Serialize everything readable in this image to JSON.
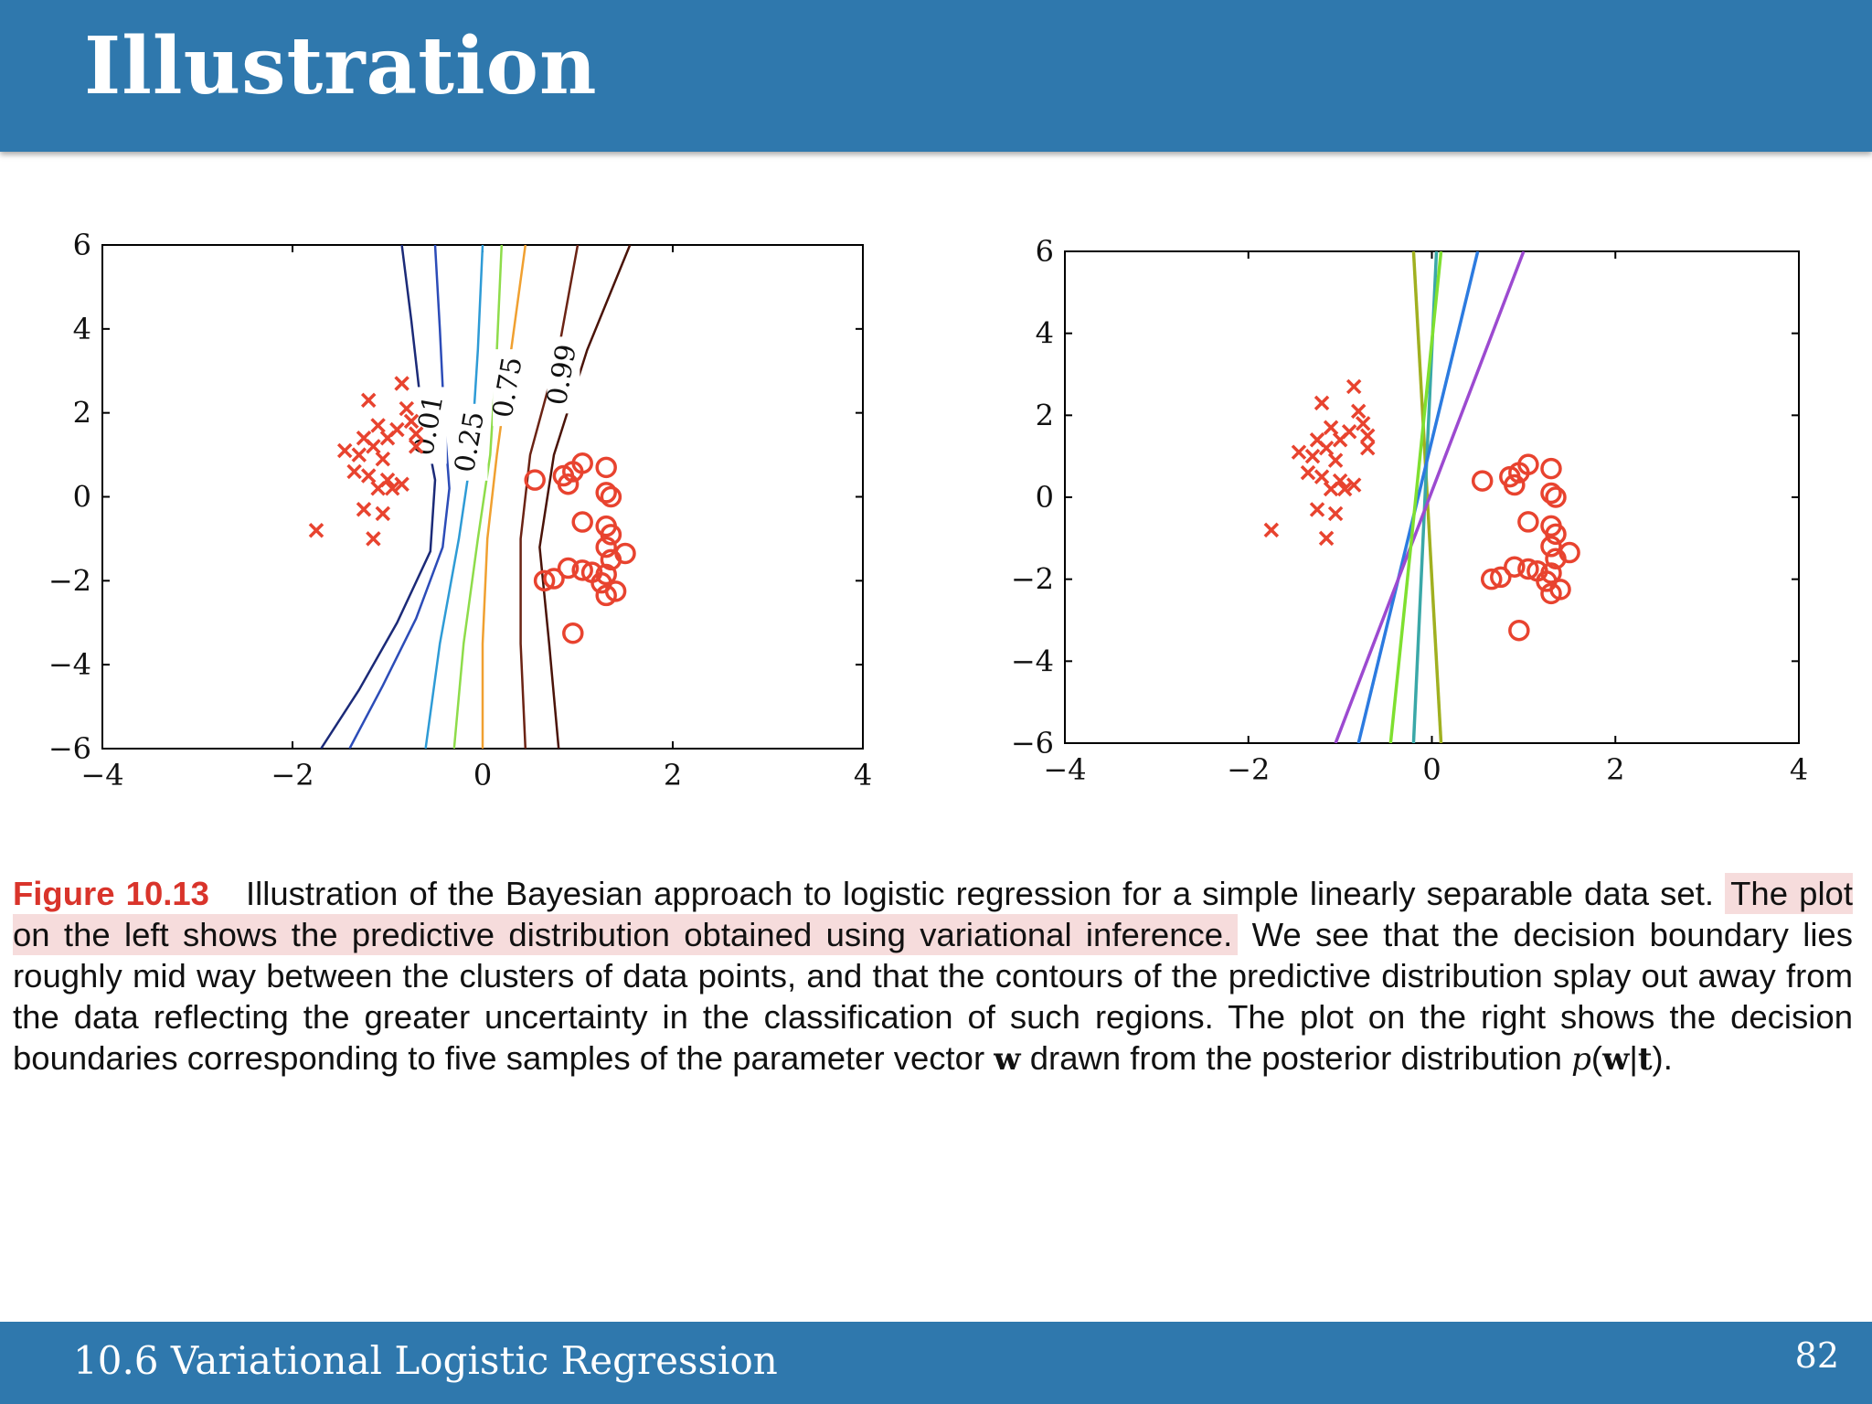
{
  "header": {
    "title": "Illustration"
  },
  "footer": {
    "section_title": "10.6 Variational Logistic Regression",
    "page_number": "82"
  },
  "caption": {
    "figure_label": "Figure 10.13",
    "text_1": "Illustration of the Bayesian approach to logistic regression for a simple linearly separable data set.",
    "highlight": "The plot on the left shows the predictive distribution obtained using variational inference.",
    "text_2": "We see that the decision boundary lies roughly mid way between the clusters of data points, and that the contours of the predictive distribution splay out away from the data reflecting the greater uncertainty in the classification of such regions. The plot on the right shows the decision boundaries corresponding to five samples of the parameter vector",
    "vec_w": "w",
    "text_3": "drawn from the posterior distribution",
    "post_p": "p",
    "post_open": "(",
    "post_w": "w",
    "post_bar": "|",
    "post_t": "t",
    "post_close": ").",
    "highlight_color": "#f6dcdc",
    "label_color": "#d9342b"
  },
  "chart_data": [
    {
      "type": "scatter",
      "panel": "left",
      "xlim": [
        -4,
        4
      ],
      "ylim": [
        -6,
        6
      ],
      "xticks": [
        "−4",
        "−2",
        "0",
        "2",
        "4"
      ],
      "yticks": [
        "−6",
        "−4",
        "−2",
        "0",
        "2",
        "4",
        "6"
      ],
      "marker_color": "#e8432f",
      "series": [
        {
          "marker": "x",
          "points": [
            [
              -1.2,
              2.3
            ],
            [
              -0.85,
              2.7
            ],
            [
              -0.8,
              2.1
            ],
            [
              -1.1,
              1.7
            ],
            [
              -0.75,
              1.8
            ],
            [
              -1.25,
              1.4
            ],
            [
              -1.0,
              1.4
            ],
            [
              -0.9,
              1.6
            ],
            [
              -0.7,
              1.5
            ],
            [
              -1.45,
              1.1
            ],
            [
              -1.3,
              1.0
            ],
            [
              -0.7,
              1.2
            ],
            [
              -1.15,
              1.2
            ],
            [
              -1.05,
              0.9
            ],
            [
              -1.35,
              0.6
            ],
            [
              -1.2,
              0.5
            ],
            [
              -1.0,
              0.4
            ],
            [
              -1.1,
              0.2
            ],
            [
              -0.95,
              0.2
            ],
            [
              -0.85,
              0.3
            ],
            [
              -1.25,
              -0.3
            ],
            [
              -1.05,
              -0.4
            ],
            [
              -1.15,
              -1.0
            ],
            [
              -1.75,
              -0.8
            ]
          ]
        },
        {
          "marker": "o",
          "points": [
            [
              0.55,
              0.4
            ],
            [
              0.85,
              0.5
            ],
            [
              0.95,
              0.6
            ],
            [
              1.05,
              0.8
            ],
            [
              1.3,
              0.7
            ],
            [
              0.9,
              0.3
            ],
            [
              1.3,
              0.1
            ],
            [
              1.35,
              0.0
            ],
            [
              1.05,
              -0.6
            ],
            [
              1.3,
              -0.7
            ],
            [
              1.35,
              -0.9
            ],
            [
              1.3,
              -1.2
            ],
            [
              1.5,
              -1.35
            ],
            [
              1.35,
              -1.5
            ],
            [
              0.9,
              -1.7
            ],
            [
              1.05,
              -1.75
            ],
            [
              1.15,
              -1.8
            ],
            [
              1.3,
              -1.85
            ],
            [
              0.75,
              -1.95
            ],
            [
              0.65,
              -2.0
            ],
            [
              1.25,
              -2.05
            ],
            [
              1.4,
              -2.25
            ],
            [
              1.3,
              -2.35
            ],
            [
              0.95,
              -3.25
            ]
          ]
        }
      ],
      "contours": [
        {
          "label": "",
          "color": "#1b2a78",
          "points": [
            [
              -1.7,
              -6
            ],
            [
              -1.3,
              -4.6
            ],
            [
              -0.9,
              -3.0
            ],
            [
              -0.55,
              -1.3
            ],
            [
              -0.5,
              0.4
            ],
            [
              -0.65,
              2.2
            ],
            [
              -0.75,
              4.2
            ],
            [
              -0.85,
              6
            ]
          ]
        },
        {
          "label": "0.01",
          "color": "#2c4cb8",
          "points": [
            [
              -1.4,
              -6
            ],
            [
              -1.05,
              -4.5
            ],
            [
              -0.7,
              -2.9
            ],
            [
              -0.42,
              -1.2
            ],
            [
              -0.35,
              0.2
            ],
            [
              -0.4,
              1.7
            ],
            [
              -0.45,
              4.0
            ],
            [
              -0.5,
              6
            ]
          ]
        },
        {
          "label": "0.25",
          "color": "#2e9bd6",
          "points": [
            [
              -0.6,
              -6
            ],
            [
              -0.45,
              -3.5
            ],
            [
              -0.25,
              -1.0
            ],
            [
              -0.12,
              1.0
            ],
            [
              -0.05,
              3.5
            ],
            [
              0.0,
              6
            ]
          ]
        },
        {
          "label": "",
          "color": "#8edc4a",
          "points": [
            [
              -0.3,
              -6
            ],
            [
              -0.2,
              -3.5
            ],
            [
              -0.05,
              -1.0
            ],
            [
              0.08,
              1.0
            ],
            [
              0.15,
              3.5
            ],
            [
              0.2,
              6
            ]
          ]
        },
        {
          "label": "0.75",
          "color": "#f0a030",
          "points": [
            [
              0.0,
              -6
            ],
            [
              0.0,
              -3.5
            ],
            [
              0.05,
              -1.0
            ],
            [
              0.15,
              1.0
            ],
            [
              0.3,
              3.5
            ],
            [
              0.45,
              6
            ]
          ]
        },
        {
          "label": "",
          "color": "#6b2314",
          "points": [
            [
              0.45,
              -6
            ],
            [
              0.4,
              -3.5
            ],
            [
              0.4,
              -1.0
            ],
            [
              0.5,
              1.0
            ],
            [
              0.8,
              3.5
            ],
            [
              1.0,
              6
            ]
          ]
        },
        {
          "label": "0.99",
          "color": "#4a1308",
          "points": [
            [
              0.8,
              -6
            ],
            [
              0.7,
              -3.5
            ],
            [
              0.6,
              -1.2
            ],
            [
              0.75,
              1.0
            ],
            [
              1.1,
              3.5
            ],
            [
              1.55,
              6
            ]
          ]
        }
      ]
    },
    {
      "type": "scatter",
      "panel": "right",
      "xlim": [
        -4,
        4
      ],
      "ylim": [
        -6,
        6
      ],
      "xticks": [
        "−4",
        "−2",
        "0",
        "2",
        "4"
      ],
      "yticks": [
        "−6",
        "−4",
        "−2",
        "0",
        "2",
        "4",
        "6"
      ],
      "marker_color": "#e8432f",
      "series": [
        {
          "marker": "x",
          "points": [
            [
              -1.2,
              2.3
            ],
            [
              -0.85,
              2.7
            ],
            [
              -0.8,
              2.1
            ],
            [
              -1.1,
              1.7
            ],
            [
              -0.75,
              1.8
            ],
            [
              -1.25,
              1.4
            ],
            [
              -1.0,
              1.4
            ],
            [
              -0.9,
              1.6
            ],
            [
              -0.7,
              1.5
            ],
            [
              -1.45,
              1.1
            ],
            [
              -1.3,
              1.0
            ],
            [
              -0.7,
              1.2
            ],
            [
              -1.15,
              1.2
            ],
            [
              -1.05,
              0.9
            ],
            [
              -1.35,
              0.6
            ],
            [
              -1.2,
              0.5
            ],
            [
              -1.0,
              0.4
            ],
            [
              -1.1,
              0.2
            ],
            [
              -0.95,
              0.2
            ],
            [
              -0.85,
              0.3
            ],
            [
              -1.25,
              -0.3
            ],
            [
              -1.05,
              -0.4
            ],
            [
              -1.15,
              -1.0
            ],
            [
              -1.75,
              -0.8
            ]
          ]
        },
        {
          "marker": "o",
          "points": [
            [
              0.55,
              0.4
            ],
            [
              0.85,
              0.5
            ],
            [
              0.95,
              0.6
            ],
            [
              1.05,
              0.8
            ],
            [
              1.3,
              0.7
            ],
            [
              0.9,
              0.3
            ],
            [
              1.3,
              0.1
            ],
            [
              1.35,
              0.0
            ],
            [
              1.05,
              -0.6
            ],
            [
              1.3,
              -0.7
            ],
            [
              1.35,
              -0.9
            ],
            [
              1.3,
              -1.2
            ],
            [
              1.5,
              -1.35
            ],
            [
              1.35,
              -1.5
            ],
            [
              0.9,
              -1.7
            ],
            [
              1.05,
              -1.75
            ],
            [
              1.15,
              -1.8
            ],
            [
              1.3,
              -1.85
            ],
            [
              0.75,
              -1.95
            ],
            [
              0.65,
              -2.0
            ],
            [
              1.25,
              -2.05
            ],
            [
              1.4,
              -2.25
            ],
            [
              1.3,
              -2.35
            ],
            [
              0.95,
              -3.25
            ]
          ]
        }
      ],
      "lines": [
        {
          "color": "#a0b020",
          "points": [
            [
              -0.2,
              6
            ],
            [
              0.1,
              -6
            ]
          ]
        },
        {
          "color": "#3aa8a8",
          "points": [
            [
              0.05,
              6
            ],
            [
              -0.2,
              -6
            ]
          ]
        },
        {
          "color": "#2c7be0",
          "points": [
            [
              0.5,
              6
            ],
            [
              -0.8,
              -6
            ]
          ]
        },
        {
          "color": "#9c4ad0",
          "points": [
            [
              1.0,
              6
            ],
            [
              -1.05,
              -6
            ]
          ]
        },
        {
          "color": "#7fe030",
          "points": [
            [
              0.1,
              6
            ],
            [
              -0.45,
              -6
            ]
          ]
        }
      ]
    }
  ]
}
